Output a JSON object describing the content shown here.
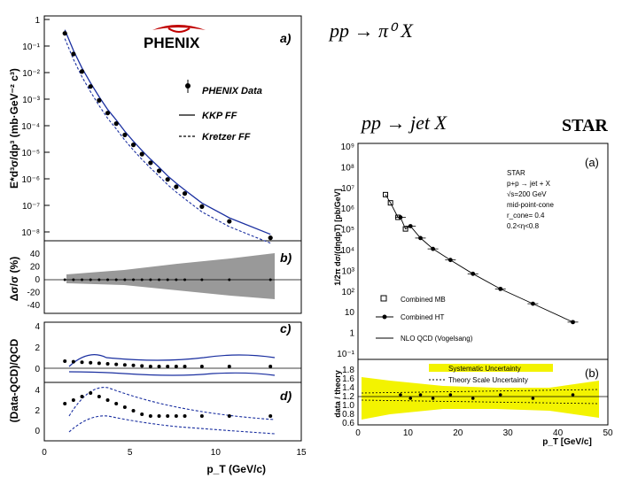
{
  "left_chart": {
    "logo_text": "PHENIX",
    "ylabel_top": "E*d³σ/dp³ (mb·GeV⁻² c³)",
    "ylabel_mid": "Δσ/σ (%)",
    "ylabel_low": "(Data-QCD)/QCD",
    "xlabel": "p_T (GeV/c)",
    "panel_labels": [
      "a)",
      "b)",
      "c)",
      "d)"
    ],
    "legend": [
      "PHENIX Data",
      "KKP FF",
      "Kretzer FF"
    ],
    "x_ticks": [
      "0",
      "5",
      "10",
      "15"
    ],
    "y_ticks_a": [
      "1",
      "10⁻¹",
      "10⁻²",
      "10⁻³",
      "10⁻⁴",
      "10⁻⁵",
      "10⁻⁶",
      "10⁻⁷",
      "10⁻⁸"
    ],
    "y_ticks_b": [
      "40",
      "20",
      "0",
      "-20",
      "-40"
    ],
    "y_ticks_c": [
      "4",
      "2",
      "0"
    ],
    "y_ticks_d": [
      "4",
      "2",
      "0"
    ]
  },
  "formulas": {
    "pi0": "pp → π⁰ X",
    "jet": "pp → jet X"
  },
  "star_label": "STAR",
  "right_chart": {
    "panel_labels": [
      "(a)",
      "(b)"
    ],
    "ylabel_top": "1/2π dσ/(dηdpT) [pb/GeV]",
    "ylabel_bottom": "data / theory",
    "xlabel": "p_T [GeV/c]",
    "legend": [
      "Combined MB",
      "Combined HT",
      "NLO QCD (Vogelsang)"
    ],
    "info_lines": [
      "STAR",
      "p+p → jet + X",
      "√s=200 GeV",
      "mid-point-cone",
      "r_cone= 0.4",
      "0.2<η<0.8"
    ],
    "legend_b": [
      "Systematic Uncertainty",
      "Theory Scale Uncertainty"
    ],
    "x_ticks": [
      "0",
      "10",
      "20",
      "30",
      "40",
      "50"
    ],
    "y_ticks_b": [
      "1.8",
      "1.6",
      "1.4",
      "1.2",
      "1.0",
      "0.8",
      "0.6"
    ],
    "y_ticks_a": [
      "10⁹",
      "10⁸",
      "10⁷",
      "10⁶",
      "10⁵",
      "10⁴",
      "10³",
      "10²",
      "10",
      "1",
      "10⁻¹"
    ],
    "colors": {
      "band": "#f3f300",
      "star_red": "#cc0000"
    }
  },
  "chart_data": [
    {
      "type": "scatter",
      "title": "pp → π⁰ X (PHENIX)",
      "xlabel": "p_T (GeV/c)",
      "ylabel": "E*d³σ/dp³ (mb·GeV⁻² c³)",
      "xlim": [
        0,
        15
      ],
      "ylim": [
        1e-08,
        1
      ],
      "yscale": "log",
      "series": [
        {
          "name": "PHENIX Data",
          "x": [
            1.2,
            1.7,
            2.2,
            2.7,
            3.2,
            3.7,
            4.2,
            4.7,
            5.2,
            5.7,
            6.2,
            6.7,
            7.2,
            7.7,
            8.2,
            9.2,
            10.8,
            13.2
          ],
          "values": [
            0.3,
            0.05,
            0.011,
            0.003,
            0.0009,
            0.0003,
            0.00012,
            4.5e-05,
            1.9e-05,
            8.5e-06,
            4e-06,
            2e-06,
            9.5e-07,
            5e-07,
            2.8e-07,
            9e-08,
            2.5e-08,
            6e-09
          ]
        }
      ]
    },
    {
      "type": "scatter",
      "title": "pp → jet X (STAR)",
      "xlabel": "p_T [GeV/c]",
      "ylabel": "1/2π dσ/(dηdpT) [pb/GeV]",
      "xlim": [
        0,
        50
      ],
      "ylim": [
        0.1,
        1000000000.0
      ],
      "yscale": "log",
      "series": [
        {
          "name": "Combined MB",
          "x": [
            5.5,
            6.5,
            8.0,
            9.5
          ],
          "values": [
            5000000.0,
            2000000.0,
            400000.0,
            110000.0
          ]
        },
        {
          "name": "Combined HT",
          "x": [
            8.5,
            10.5,
            12.5,
            15.0,
            18.5,
            23.0,
            28.5,
            35.0,
            43.0
          ],
          "values": [
            400000.0,
            150000.0,
            40000.0,
            12000.0,
            3500.0,
            750,
            140,
            27,
            3.5
          ]
        }
      ]
    }
  ]
}
